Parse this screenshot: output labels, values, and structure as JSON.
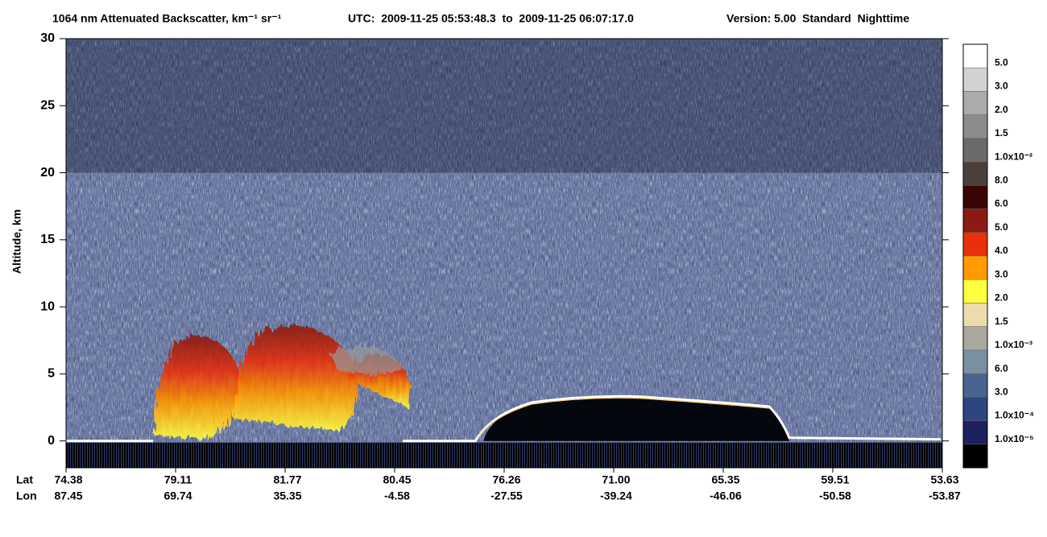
{
  "chart_data": {
    "type": "curtain",
    "title": "1064 nm Attenuated Backscatter, km⁻¹ sr⁻¹",
    "utc_range": "UTC:  2009-11-25 05:53:48.3  to  2009-11-25 06:07:17.0",
    "version": "Version: 5.00  Standard  Nighttime",
    "y_label": "Altitude, km",
    "ylim": [
      -2,
      30
    ],
    "yticks": [
      0,
      5,
      10,
      15,
      20,
      25,
      30
    ],
    "row_labels": [
      "Lat",
      "Lon"
    ],
    "lat": [
      "74.38",
      "79.11",
      "81.77",
      "80.45",
      "76.26",
      "71.00",
      "65.35",
      "59.51",
      "53.63"
    ],
    "lon": [
      "87.45",
      "69.74",
      "35.35",
      "-4.58",
      "-27.55",
      "-39.24",
      "-46.06",
      "-50.58",
      "-53.87"
    ],
    "colorbar": {
      "colors": [
        "#ffffff",
        "#d2d2d2",
        "#ababab",
        "#8c8c8c",
        "#6a6a6a",
        "#4b3f3b",
        "#3a0404",
        "#8b1a12",
        "#e8300c",
        "#ff9a00",
        "#ffff40",
        "#ebdcb0",
        "#a8a89e",
        "#7890a0",
        "#4a6490",
        "#2e4680",
        "#1e2060",
        "#000000"
      ],
      "labels": [
        "5.0",
        "3.0",
        "2.0",
        "1.5",
        "1.0x10⁻²",
        "8.0",
        "6.0",
        "5.0",
        "4.0",
        "3.0",
        "2.0",
        "1.5",
        "1.0x10⁻³",
        "6.0",
        "3.0",
        "1.0x10⁻⁴",
        "1.0x10⁻⁵"
      ]
    }
  }
}
